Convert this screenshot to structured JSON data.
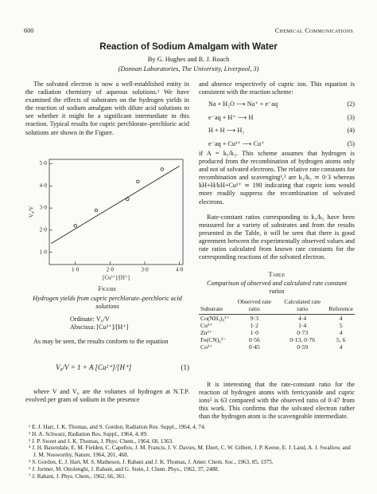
{
  "header": {
    "page_number": "600",
    "journal": "Chemical Communications"
  },
  "title": "Reaction of Sodium Amalgam with Water",
  "authors": "By G. Hughes and R. J. Roach",
  "affiliation": "(Donnan Laboratories, The University, Liverpool, 3)",
  "left_column": {
    "paragraphs": [
      "The solvated electron is now a well-established entity in the radiation chemistry of aqueous solutions.¹ We have examined the effects of substrates on the hydrogen yields in the reaction of sodium amalgam with dilute acid solutions to see whether it might be a significant intermediate in this reaction. Typical results for cupric perchlorate–perchloric acid solutions are shown in the Figure.",
      "As may be seen, the results conform to the equation",
      "where V and V₀ are the volumes of hydrogen at N.T.P. evolved per gram of sodium in the presence"
    ],
    "equation": {
      "text": "V₀/V = 1 + A [Cu²⁺]/[H⁺]",
      "number": "(1)"
    }
  },
  "figure": {
    "label": "Figure",
    "caption": "Hydrogen yields from cupric perchlorate–perchloric acid solutions",
    "ordinate": "Ordinate: V₀/V",
    "abscissa": "Abscissa: [Cu²⁺]/[H⁺]",
    "chart_data": {
      "type": "scatter",
      "x_label": "[Cu²⁺]/[H⁺]",
      "y_label": "V₀/V",
      "x": [
        1.0,
        1.6,
        2.5,
        2.8,
        3.5
      ],
      "values": [
        2.2,
        2.9,
        3.4,
        4.2,
        4.75
      ],
      "fit_line": {
        "x": [
          0.3,
          4.0
        ],
        "values": [
          1.4,
          4.9
        ]
      },
      "xlim": [
        0.25,
        4.1
      ],
      "ylim": [
        0.45,
        5.2
      ],
      "xticks": [
        {
          "value": 1,
          "label": "1·0"
        },
        {
          "value": 2,
          "label": "2·0"
        },
        {
          "value": 3,
          "label": "3·0"
        },
        {
          "value": 4,
          "label": "4·0"
        }
      ],
      "yticks": [
        {
          "value": 1,
          "label": "1·0"
        },
        {
          "value": 2,
          "label": "2·0"
        },
        {
          "value": 3,
          "label": "3·0"
        },
        {
          "value": 4,
          "label": "4·0"
        },
        {
          "value": 5,
          "label": "5·0"
        }
      ],
      "color": "#222222"
    }
  },
  "right_column": {
    "intro": "and absence respectively of cupric ion. This equation is consistent with the reaction scheme:",
    "equations": [
      {
        "text": "Na + H₂O ⟶ Na⁺ + e⁻aq",
        "number": "(2)"
      },
      {
        "text": "e⁻aq + H⁺ ⟶ H",
        "number": "(3)"
      },
      {
        "text": "H + H ⟶ H₂",
        "number": "(4)"
      },
      {
        "text": "e⁻aq + Cu²⁺ ⟶ Cu⁺",
        "number": "(5)"
      }
    ],
    "paragraphs": [
      "if A = k₅/k₃. This scheme assumes that hydrogen is produced from the recombination of hydrogen atoms only and not of solvated electrons. The relative rate constants for recombination and scavenging²,³ are k₃/k₅ ≃ 0·3 whereas kH+H/kH+Cu²⁺ ≃ 190 indicating that cupric ions would more readily suppress the recombination of solvated electrons.",
      "Rate-constant ratios corresponding to k₃/k₅ have been measured for a variety of substrates and from the results presented in the Table, it will be seen that there is good agreement between the experimentally observed values and rate ratios calculated from known rate constants for the corresponding reactions of the solvated electron.",
      "It is interesting that the rate-constant ratio for the reaction of hydrogen atoms with ferricyanide and cupric ions⁵ is 63 compared with the observed ratio of 0·47 from this work. This confirms that the solvated electron rather than the hydrogen atom is the scavengeable intermediate."
    ]
  },
  "table": {
    "label": "Table",
    "caption": "Comparison of observed and calculated rate constant ratios",
    "header": [
      "Substrate",
      "Observed rate ratio",
      "Calculated rate ratio",
      "Reference"
    ],
    "rows": [
      [
        "Co(NH₃)₆³⁺",
        "9·3",
        "4·4",
        "4"
      ],
      [
        "Cu²⁺",
        "1·2",
        "1·4",
        "5"
      ],
      [
        "Zn²⁺",
        "1·0",
        "0·73",
        "4"
      ],
      [
        "Fe(CN)₆³⁻",
        "0·56",
        "0·13, 0·76",
        "5, 6"
      ],
      [
        "Co²⁺",
        "0·45",
        "0·59",
        "4"
      ]
    ]
  },
  "references": [
    "¹ E. J. Hart, J. K. Thomas, and S. Gordon, Radiation Res. Suppl., 1964, 4, 74.",
    "² H. A. Schwarz, Radiation Res. Suppl., 1964, 4, 89.",
    "³ J. P. Sweet and J. K. Thomas, J. Phys. Chem., 1964, 68, 1363.",
    "⁴ J. H. Baxendale, E. M. Fielden, C. Capellos, J. M. Francis, J. V. Davies, M. Ebert, C. W. Gilbert, J. P. Keene, E. J. Land, A. J. Swallow, and J. M. Nosworthy, Nature, 1964, 201, 468.",
    "⁵ S. Gordon, E. J. Hart, M. S. Matheson, J. Rabani and J. K. Thomas, J. Amer. Chem. Soc., 1963, 85, 1375.",
    "⁶ J. Jortner, M. Ottolenghi, J. Rabani, and G. Stein, J. Chem. Phys., 1962, 37, 2488.",
    "⁷ J. Rabani, J. Phys. Chem., 1962, 66, 361."
  ]
}
